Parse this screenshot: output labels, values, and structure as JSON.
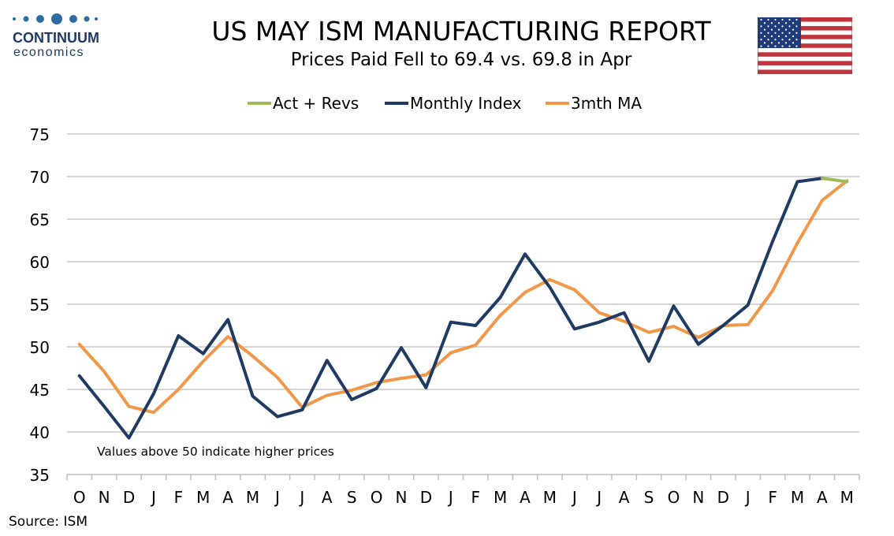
{
  "header": {
    "title": "US MAY ISM MANUFACTURING REPORT",
    "subtitle": "Prices Paid Fell to 69.4 vs. 69.8 in Apr"
  },
  "logo": {
    "line1": "CONTINUUM",
    "line2": "economics",
    "color": "#1f3b63",
    "dot_color": "#2e6da4"
  },
  "flag": {
    "icon": "us-flag-icon"
  },
  "source": "Source: ISM",
  "colors": {
    "act_revs": "#9bbb59",
    "monthly": "#1f3b63",
    "ma": "#f0974a",
    "grid": "#c8c8c8"
  },
  "chart_data": {
    "type": "line",
    "categories": [
      "O",
      "N",
      "D",
      "J",
      "F",
      "M",
      "A",
      "M",
      "J",
      "J",
      "A",
      "S",
      "O",
      "N",
      "D",
      "J",
      "F",
      "M",
      "A",
      "M",
      "J",
      "J",
      "A",
      "S",
      "O",
      "N",
      "D",
      "J",
      "F",
      "M",
      "A",
      "M"
    ],
    "ylim": [
      35,
      75
    ],
    "yticks": [
      35,
      40,
      45,
      50,
      55,
      60,
      65,
      70,
      75
    ],
    "grid": true,
    "legend_position": "top-center",
    "annotation": "Values above 50 indicate higher prices",
    "series": [
      {
        "name": "Act + Revs",
        "color": "#9bbb59",
        "values": [
          null,
          null,
          null,
          null,
          null,
          null,
          null,
          null,
          null,
          null,
          null,
          null,
          null,
          null,
          null,
          null,
          null,
          null,
          null,
          null,
          null,
          null,
          null,
          null,
          null,
          null,
          null,
          null,
          null,
          null,
          69.8,
          69.4
        ]
      },
      {
        "name": "Monthly Index",
        "color": "#1f3b63",
        "values": [
          46.6,
          43.0,
          39.3,
          44.5,
          51.3,
          49.2,
          53.2,
          44.2,
          41.8,
          42.6,
          48.4,
          43.8,
          45.1,
          49.9,
          45.2,
          52.9,
          52.5,
          55.8,
          60.9,
          57.0,
          52.1,
          52.9,
          54.0,
          48.3,
          54.8,
          50.3,
          52.5,
          54.9,
          62.4,
          69.4,
          69.8,
          null
        ]
      },
      {
        "name": "3mth MA",
        "color": "#f0974a",
        "values": [
          50.3,
          47.1,
          43.0,
          42.3,
          45.0,
          48.3,
          51.2,
          48.9,
          46.4,
          42.9,
          44.3,
          44.9,
          45.8,
          46.3,
          46.7,
          49.3,
          50.2,
          53.7,
          56.4,
          57.9,
          56.7,
          54.0,
          53.0,
          51.7,
          52.4,
          51.1,
          52.5,
          52.6,
          56.6,
          62.2,
          67.2,
          69.5
        ]
      }
    ]
  }
}
